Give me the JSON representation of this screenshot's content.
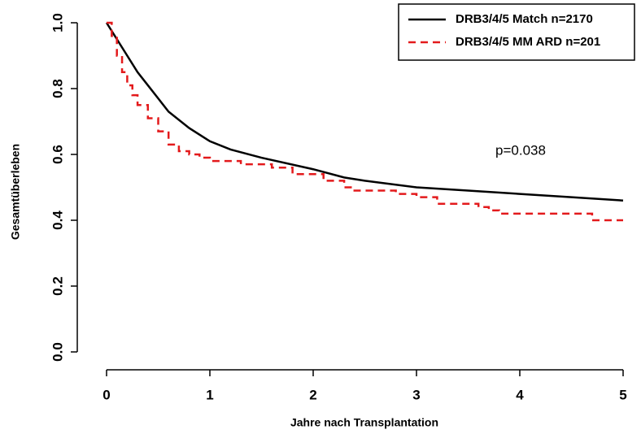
{
  "chart_data": {
    "type": "line",
    "xlabel": "Jahre nach Transplantation",
    "ylabel": "Gesamtüberleben",
    "annotation": "p=0.038",
    "xlim": [
      0,
      5
    ],
    "ylim": [
      0,
      1
    ],
    "xticks": [
      0,
      1,
      2,
      3,
      4,
      5
    ],
    "yticks": [
      {
        "value": 0,
        "label": "0.0"
      },
      {
        "value": 0.2,
        "label": "0.2"
      },
      {
        "value": 0.4,
        "label": "0.4"
      },
      {
        "value": 0.6,
        "label": "0.6"
      },
      {
        "value": 0.8,
        "label": "0.8"
      },
      {
        "value": 1,
        "label": "1.0"
      }
    ],
    "legend": "top-right",
    "series": [
      {
        "name": "DRB3/4/5 Match n=2170",
        "color": "#000000",
        "dash": false,
        "step": false,
        "x": [
          0,
          0.1,
          0.2,
          0.3,
          0.4,
          0.5,
          0.6,
          0.8,
          1.0,
          1.2,
          1.5,
          2.0,
          2.3,
          2.5,
          3.0,
          3.5,
          4.0,
          4.5,
          5.0
        ],
        "values": [
          1.0,
          0.95,
          0.9,
          0.85,
          0.81,
          0.77,
          0.73,
          0.68,
          0.64,
          0.615,
          0.59,
          0.555,
          0.53,
          0.52,
          0.5,
          0.49,
          0.48,
          0.47,
          0.46
        ]
      },
      {
        "name": "DRB3/4/5 MM ARD n=201",
        "color": "#e31a1c",
        "dash": true,
        "step": true,
        "x": [
          0,
          0.05,
          0.1,
          0.15,
          0.2,
          0.25,
          0.3,
          0.4,
          0.5,
          0.6,
          0.7,
          0.8,
          0.9,
          1.0,
          1.3,
          1.6,
          1.8,
          2.1,
          2.3,
          2.4,
          2.8,
          3.0,
          3.2,
          3.6,
          3.7,
          3.8,
          4.7,
          5.0
        ],
        "values": [
          1.0,
          0.96,
          0.9,
          0.85,
          0.81,
          0.78,
          0.75,
          0.71,
          0.67,
          0.63,
          0.61,
          0.6,
          0.59,
          0.58,
          0.57,
          0.56,
          0.54,
          0.52,
          0.5,
          0.49,
          0.48,
          0.47,
          0.45,
          0.44,
          0.43,
          0.42,
          0.4,
          0.4
        ]
      }
    ]
  }
}
